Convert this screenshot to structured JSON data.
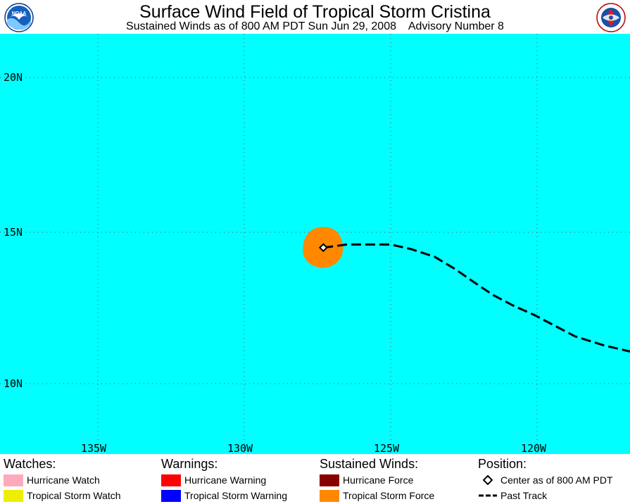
{
  "header": {
    "title": "Surface Wind Field of Tropical Storm Cristina",
    "subtitle": "Sustained Winds as of 800 AM PDT Sun Jun 29, 2008    Advisory Number 8"
  },
  "logos": {
    "left": {
      "icon": "noaa-logo-icon",
      "text": "NOAA"
    },
    "right": {
      "icon": "nws-logo-icon"
    }
  },
  "map": {
    "ocean_color": "#00ffff",
    "grid_style": "dotted",
    "lon_labels": [
      "135W",
      "130W",
      "125W",
      "120W"
    ],
    "lat_labels": [
      "20N",
      "15N",
      "10N"
    ],
    "storm": {
      "center": {
        "lon": -127.3,
        "lat": 14.5
      },
      "wind_field_color": "#ff8800",
      "wind_field_radius_deg": 0.7,
      "past_track": [
        [
          -127.3,
          14.5
        ],
        [
          -126.5,
          14.6
        ],
        [
          -125.8,
          14.6
        ],
        [
          -125.0,
          14.6
        ],
        [
          -124.3,
          14.45
        ],
        [
          -123.5,
          14.2
        ],
        [
          -122.8,
          13.8
        ],
        [
          -122.2,
          13.4
        ],
        [
          -121.5,
          12.95
        ],
        [
          -120.8,
          12.6
        ],
        [
          -120.1,
          12.3
        ],
        [
          -119.5,
          12.0
        ],
        [
          -118.7,
          11.6
        ],
        [
          -117.7,
          11.3
        ],
        [
          -116.8,
          11.1
        ]
      ]
    }
  },
  "legend": {
    "watches": {
      "heading": "Watches:",
      "items": [
        {
          "label": "Hurricane Watch",
          "color": "#ffaabb"
        },
        {
          "label": "Tropical Storm Watch",
          "color": "#eeee00"
        }
      ]
    },
    "warnings": {
      "heading": "Warnings:",
      "items": [
        {
          "label": "Hurricane Warning",
          "color": "#ff0000"
        },
        {
          "label": "Tropical Storm Warning",
          "color": "#0000ff"
        }
      ]
    },
    "winds": {
      "heading": "Sustained Winds:",
      "items": [
        {
          "label": "Hurricane Force",
          "color": "#880000"
        },
        {
          "label": "Tropical Storm Force",
          "color": "#ff8800"
        }
      ]
    },
    "position": {
      "heading": "Position:",
      "center_label": "Center as of 800 AM PDT",
      "track_label": "Past Track",
      "center_icon": "diamond-icon",
      "track_icon": "dashed-line-icon"
    }
  }
}
